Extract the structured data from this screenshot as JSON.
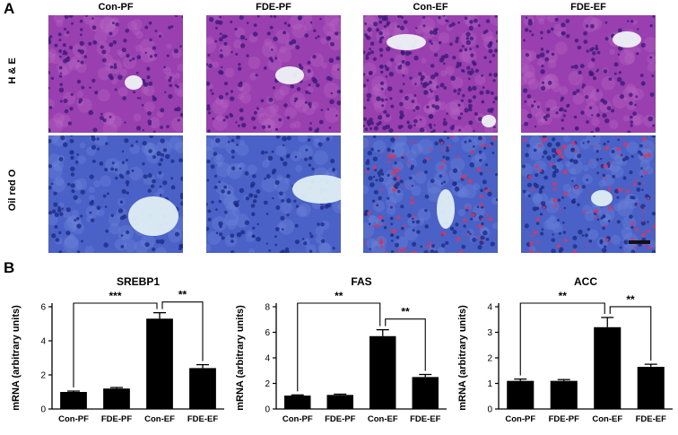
{
  "panel_a": {
    "letter": "A",
    "columns": [
      "Con-PF",
      "FDE-PF",
      "Con-EF",
      "FDE-EF"
    ],
    "rows": [
      "H & E",
      "Oil red O"
    ],
    "colors": {
      "he_background": "#9a3fb0",
      "he_nuclei": "#3b1a7a",
      "he_lumen": "#eef3f6",
      "oil_background": "#4a62c8",
      "oil_nuclei": "#1b2c86",
      "oil_lipid": "#e0345a",
      "oil_lumen": "#dfeef3"
    }
  },
  "panel_b": {
    "letter": "B",
    "chart_data": [
      {
        "type": "bar",
        "title": "SREBP1",
        "ylabel": "mRNA (arbitrary units)",
        "categories": [
          "Con-PF",
          "FDE-PF",
          "Con-EF",
          "FDE-EF"
        ],
        "values": [
          1.0,
          1.2,
          5.3,
          2.4
        ],
        "errors": [
          0.05,
          0.06,
          0.35,
          0.2
        ],
        "ylim": [
          0,
          6
        ],
        "yticks": [
          0,
          2,
          4,
          6
        ],
        "significance": [
          {
            "from": 0,
            "to": 2,
            "label": "***"
          },
          {
            "from": 2,
            "to": 3,
            "label": "**"
          }
        ]
      },
      {
        "type": "bar",
        "title": "FAS",
        "ylabel": "mRNA (arbitrary units)",
        "categories": [
          "Con-PF",
          "FDE-PF",
          "Con-EF",
          "FDE-EF"
        ],
        "values": [
          1.05,
          1.1,
          5.7,
          2.5
        ],
        "errors": [
          0.05,
          0.06,
          0.5,
          0.2
        ],
        "ylim": [
          0,
          8
        ],
        "yticks": [
          0,
          2,
          4,
          6,
          8
        ],
        "significance": [
          {
            "from": 0,
            "to": 2,
            "label": "**"
          },
          {
            "from": 2,
            "to": 3,
            "label": "**"
          }
        ]
      },
      {
        "type": "bar",
        "title": "ACC",
        "ylabel": "mRNA (arbitrary units)",
        "categories": [
          "Con-PF",
          "FDE-PF",
          "Con-EF",
          "FDE-EF"
        ],
        "values": [
          1.1,
          1.1,
          3.2,
          1.65
        ],
        "errors": [
          0.07,
          0.05,
          0.38,
          0.1
        ],
        "ylim": [
          0,
          4
        ],
        "yticks": [
          0,
          1,
          2,
          3,
          4
        ],
        "significance": [
          {
            "from": 0,
            "to": 2,
            "label": "**"
          },
          {
            "from": 2,
            "to": 3,
            "label": "**"
          }
        ]
      }
    ]
  }
}
